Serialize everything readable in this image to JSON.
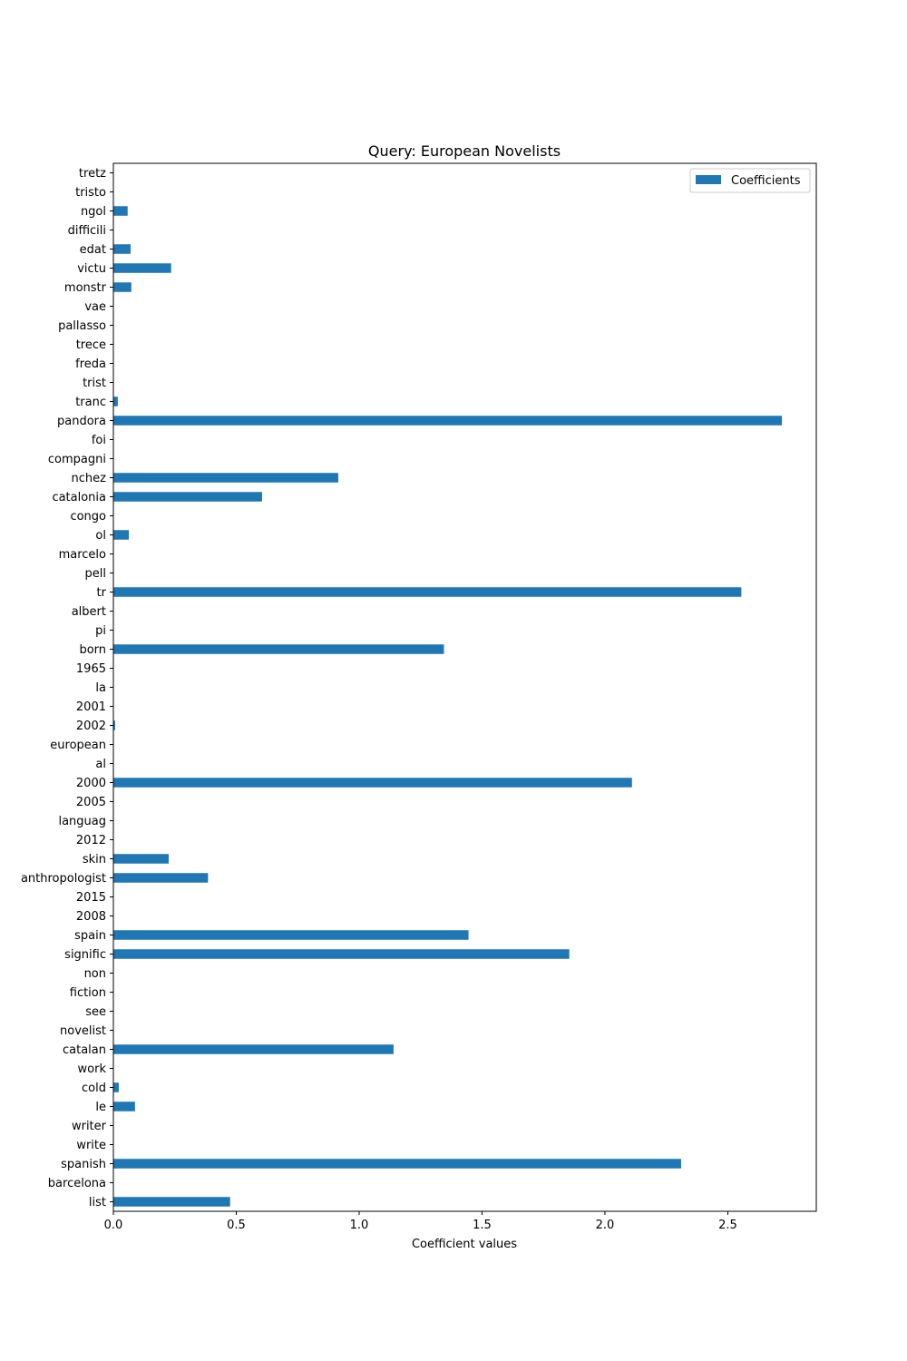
{
  "chart_data": {
    "type": "bar",
    "orientation": "horizontal",
    "title": "Query: European Novelists",
    "xlabel": "Coefficient values",
    "ylabel": "",
    "xlim": [
      0,
      2.86
    ],
    "xticks": [
      0.0,
      0.5,
      1.0,
      1.5,
      2.0,
      2.5
    ],
    "xtick_labels": [
      "0.0",
      "0.5",
      "1.0",
      "1.5",
      "2.0",
      "2.5"
    ],
    "grid": false,
    "legend": {
      "placement": "top-right",
      "entries": [
        "Coefficients"
      ]
    },
    "bar_color": "#1f77b4",
    "categories": [
      "list",
      "barcelona",
      "spanish",
      "write",
      "writer",
      "le",
      "cold",
      "work",
      "catalan",
      "novelist",
      "see",
      "fiction",
      "non",
      "signific",
      "spain",
      "2008",
      "2015",
      "anthropologist",
      "skin",
      "2012",
      "languag",
      "2005",
      "2000",
      "al",
      "european",
      "2002",
      "2001",
      "la",
      "1965",
      "born",
      "pi",
      "albert",
      "tr",
      "pell",
      "marcelo",
      "ol",
      "congo",
      "catalonia",
      "nchez",
      "compagni",
      "foi",
      "pandora",
      "tranc",
      "trist",
      "freda",
      "trece",
      "pallasso",
      "vae",
      "monstr",
      "victu",
      "edat",
      "difficili",
      "ngol",
      "tristo",
      "tretz"
    ],
    "series": [
      {
        "name": "Coefficients",
        "values": [
          0.475,
          0,
          2.31,
          0,
          0,
          0.088,
          0.022,
          0,
          1.14,
          0,
          0,
          0,
          0,
          1.855,
          1.445,
          0,
          0,
          0.385,
          0.225,
          0,
          0,
          0,
          2.11,
          0,
          0,
          0.007,
          0,
          0,
          0,
          1.345,
          0,
          0,
          2.555,
          0,
          0,
          0.063,
          0,
          0.605,
          0.915,
          0,
          0,
          2.72,
          0.018,
          0,
          0,
          0,
          0,
          0,
          0.073,
          0.235,
          0.07,
          0,
          0.058,
          0,
          0
        ]
      }
    ]
  }
}
